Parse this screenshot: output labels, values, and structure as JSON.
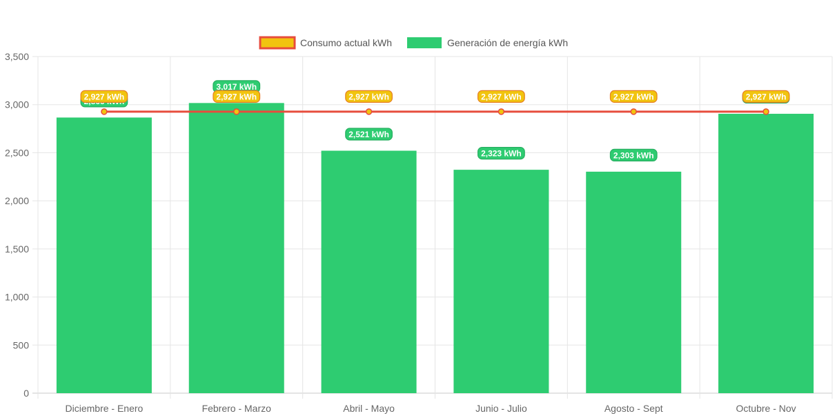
{
  "chart_data": {
    "type": "bar",
    "categories": [
      "Diciembre - Enero",
      "Febrero - Marzo",
      "Abril - Mayo",
      "Junio - Julio",
      "Agosto - Sept",
      "Octubre - Nov"
    ],
    "series": [
      {
        "name": "Consumo actual kWh",
        "type": "line",
        "values": [
          2927,
          2927,
          2927,
          2927,
          2927,
          2927
        ],
        "data_labels": [
          "2,927 kWh",
          "2,927 kWh",
          "2,927 kWh",
          "2,927 kWh",
          "2,927 kWh",
          "2,927 kWh"
        ],
        "color": "#E74C3C",
        "fill": "#F1C40F"
      },
      {
        "name": "Generación de energía kWh",
        "type": "bar",
        "values": [
          2866,
          3017,
          2521,
          2323,
          2303,
          2905
        ],
        "data_labels": [
          "2,866 kWh",
          "3,017 kWh",
          "2,521 kWh",
          "2,323 kWh",
          "2,303 kWh",
          "2,905 kWh"
        ],
        "color": "#2ECC71"
      }
    ],
    "yticks": [
      "0",
      "500",
      "1,000",
      "1,500",
      "2,000",
      "2,500",
      "3,000",
      "3,500"
    ],
    "ylim": [
      0,
      3500
    ],
    "grid": true,
    "legend_position": "top-center",
    "xlabel": "",
    "ylabel": ""
  }
}
